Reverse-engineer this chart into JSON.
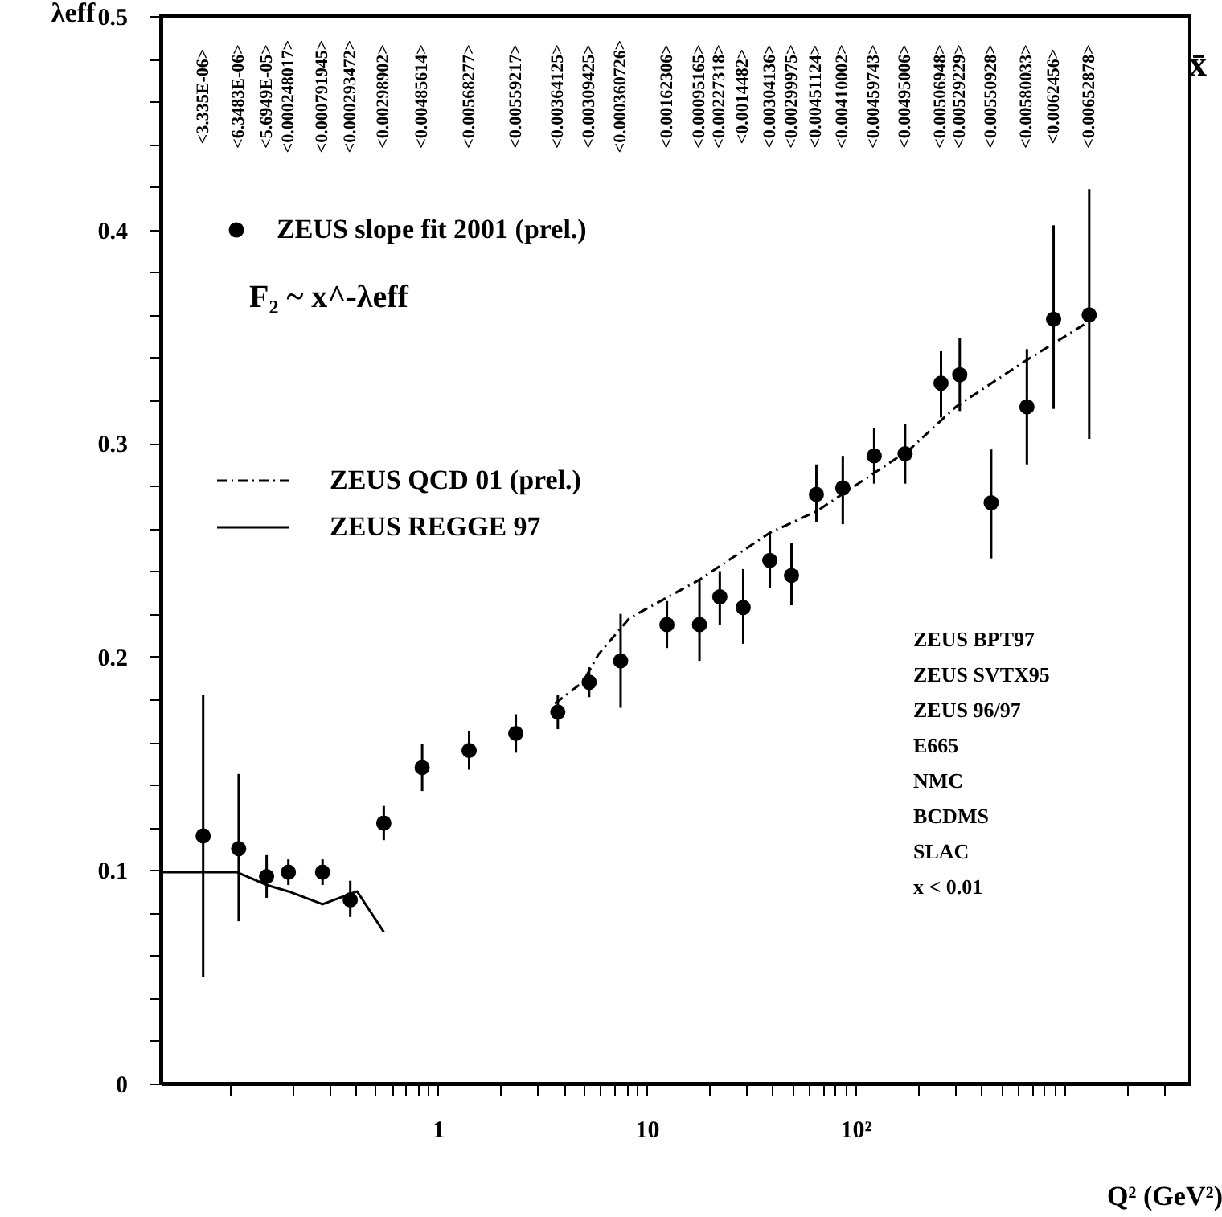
{
  "chart_data": {
    "type": "scatter",
    "xlabel": "Q² (GeV²)",
    "ylabel": "λeff",
    "log": "x",
    "grid": false,
    "legend": "top left",
    "xlim": [
      0.047,
      4000
    ],
    "ylim": [
      0,
      0.5
    ],
    "xticks": [
      {
        "value": 0.1,
        "label": null
      },
      {
        "value": 0.2,
        "label": null
      },
      {
        "value": 0.3,
        "label": null
      },
      {
        "value": 0.4,
        "label": null
      },
      {
        "value": 0.5,
        "label": null
      },
      {
        "value": 0.6,
        "label": null
      },
      {
        "value": 0.7,
        "label": null
      },
      {
        "value": 0.8,
        "label": null
      },
      {
        "value": 0.9,
        "label": null
      },
      1,
      {
        "value": 2,
        "label": null
      },
      {
        "value": 3,
        "label": null
      },
      {
        "value": 4,
        "label": null
      },
      {
        "value": 5,
        "label": null
      },
      {
        "value": 6,
        "label": null
      },
      {
        "value": 7,
        "label": null
      },
      {
        "value": 8,
        "label": null
      },
      {
        "value": 9,
        "label": null
      },
      10,
      {
        "value": 20,
        "label": null
      },
      {
        "value": 30,
        "label": null
      },
      {
        "value": 40,
        "label": null
      },
      {
        "value": 50,
        "label": null
      },
      {
        "value": 60,
        "label": null
      },
      {
        "value": 70,
        "label": null
      },
      {
        "value": 80,
        "label": null
      },
      {
        "value": 90,
        "label": null
      },
      {
        "value": 100,
        "label": "10²"
      },
      {
        "value": 200,
        "label": null
      },
      {
        "value": 300,
        "label": null
      },
      {
        "value": 400,
        "label": null
      },
      {
        "value": 500,
        "label": null
      },
      {
        "value": 600,
        "label": null
      },
      {
        "value": 700,
        "label": null
      },
      {
        "value": 800,
        "label": null
      },
      {
        "value": 900,
        "label": null
      },
      {
        "value": 1000,
        "label": null
      },
      {
        "value": 2000,
        "label": null
      },
      {
        "value": 3000,
        "label": null
      }
    ],
    "yticks": [
      0,
      {
        "value": 0.02,
        "label": null
      },
      {
        "value": 0.04,
        "label": null
      },
      {
        "value": 0.06,
        "label": null
      },
      {
        "value": 0.08,
        "label": null
      },
      0.1,
      {
        "value": 0.12,
        "label": null
      },
      {
        "value": 0.14,
        "label": null
      },
      {
        "value": 0.16,
        "label": null
      },
      {
        "value": 0.18,
        "label": null
      },
      0.2,
      {
        "value": 0.22,
        "label": null
      },
      {
        "value": 0.24,
        "label": null
      },
      {
        "value": 0.26,
        "label": null
      },
      {
        "value": 0.28,
        "label": null
      },
      0.3,
      {
        "value": 0.32,
        "label": null
      },
      {
        "value": 0.34,
        "label": null
      },
      {
        "value": 0.36,
        "label": null
      },
      {
        "value": 0.38,
        "label": null
      },
      0.4,
      {
        "value": 0.42,
        "label": null
      },
      {
        "value": 0.44,
        "label": null
      },
      {
        "value": 0.46,
        "label": null
      },
      {
        "value": 0.48,
        "label": null
      },
      0.5
    ],
    "series": [
      {
        "name": "ZEUS slope fit 2001 (prel.)",
        "color": "#000000",
        "marker": "circle",
        "x": [
          0.075,
          0.111,
          0.151,
          0.192,
          0.28,
          0.38,
          0.55,
          0.84,
          1.41,
          2.36,
          3.75,
          5.3,
          7.5,
          12.5,
          17.9,
          22.4,
          29,
          38.9,
          49.4,
          65,
          87,
          123,
          173,
          257,
          316,
          447,
          663,
          890,
          1318
        ],
        "values": [
          0.116,
          0.11,
          0.097,
          0.099,
          0.099,
          0.086,
          0.122,
          0.148,
          0.156,
          0.164,
          0.174,
          0.188,
          0.198,
          0.215,
          0.215,
          0.228,
          0.223,
          0.245,
          0.238,
          0.276,
          0.279,
          0.294,
          0.295,
          0.328,
          0.332,
          0.272,
          0.317,
          0.358,
          0.36
        ],
        "errors": [
          [
            0.05,
            0.182
          ],
          [
            0.076,
            0.145
          ],
          [
            0.087,
            0.107
          ],
          [
            0.093,
            0.105
          ],
          [
            0.093,
            0.105
          ],
          [
            0.078,
            0.095
          ],
          [
            0.114,
            0.13
          ],
          [
            0.137,
            0.159
          ],
          [
            0.147,
            0.165
          ],
          [
            0.155,
            0.173
          ],
          [
            0.166,
            0.182
          ],
          [
            0.181,
            0.195
          ],
          [
            0.176,
            0.22
          ],
          [
            0.204,
            0.226
          ],
          [
            0.198,
            0.236
          ],
          [
            0.215,
            0.24
          ],
          [
            0.206,
            0.241
          ],
          [
            0.232,
            0.258
          ],
          [
            0.224,
            0.253
          ],
          [
            0.263,
            0.29
          ],
          [
            0.262,
            0.294
          ],
          [
            0.281,
            0.307
          ],
          [
            0.281,
            0.309
          ],
          [
            0.312,
            0.343
          ],
          [
            0.315,
            0.349
          ],
          [
            0.246,
            0.297
          ],
          [
            0.29,
            0.344
          ],
          [
            0.316,
            0.402
          ],
          [
            0.302,
            0.419
          ]
        ]
      },
      {
        "name": "ZEUS QCD 01 (prel.)",
        "type": "line",
        "color": "#000000",
        "line_style": "dashed",
        "x": [
          3.63,
          4.94,
          5.87,
          8.27,
          17.9,
          38.9,
          65,
          182,
          303,
          640,
          1318
        ],
        "values": [
          0.178,
          0.188,
          0.201,
          0.218,
          0.236,
          0.258,
          0.268,
          0.297,
          0.317,
          0.338,
          0.357
        ]
      },
      {
        "name": "ZEUS REGGE 97",
        "type": "line",
        "color": "#000000",
        "line_style": "solid",
        "x": [
          0.0478,
          0.109,
          0.151,
          0.192,
          0.28,
          0.41,
          0.55
        ],
        "values": [
          0.099,
          0.099,
          0.093,
          0.09,
          0.084,
          0.09,
          0.071
        ]
      }
    ],
    "annotations": [
      "<3.335E-06>",
      "<6.3483E-06>",
      "<5.6949E-05>",
      "<0.000248017>",
      "<0.000791945>",
      "<0.000293472>",
      "<0.00298902>",
      "<0.00485614>",
      "<0.00568277>",
      "<0.00559217>",
      "<0.00364125>",
      "<0.00309425>",
      "<0.000360726>",
      "<0.00162306>",
      "<0.00095165>",
      "<0.00227318>",
      "<0.0014482>",
      "<0.00304136>",
      "<0.00299975>",
      "<0.00451124>",
      "<0.00410002>",
      "<0.00459743>",
      "<0.00495006>",
      "<0.00506948>",
      "<0.00529229>",
      "<0.00550928>",
      "<0.00580033>",
      "<0.0062456>",
      "<0.00652878>",
      "F₂ ~ x^-λeff",
      "x̄",
      "ZEUS BPT97",
      "ZEUS SVTX95",
      "ZEUS 96/97",
      "E665",
      "NMC",
      "BCDMS",
      "SLAC",
      "x < 0.01"
    ]
  }
}
